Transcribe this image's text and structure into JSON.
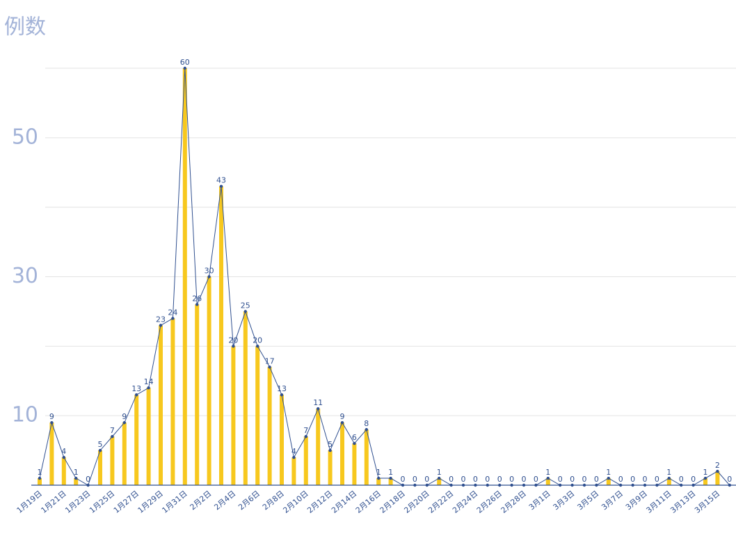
{
  "chart_data": {
    "type": "bar",
    "y_title": "例数",
    "categories": [
      "1月19日",
      null,
      "1月21日",
      null,
      "1月23日",
      null,
      "1月25日",
      null,
      "1月27日",
      null,
      "1月29日",
      null,
      "1月31日",
      null,
      "2月2日",
      null,
      "2月4日",
      null,
      "2月6日",
      null,
      "2月8日",
      null,
      "2月10日",
      null,
      "2月12日",
      null,
      "2月14日",
      null,
      "2月16日",
      null,
      "2月18日",
      null,
      "2月20日",
      null,
      "2月22日",
      null,
      "2月24日",
      null,
      "2月26日",
      null,
      "2月28日",
      null,
      "3月1日",
      null,
      "3月3日",
      null,
      "3月5日",
      null,
      "3月7日",
      null,
      "3月9日",
      null,
      "3月11日",
      null,
      "3月13日",
      null,
      "3月15日",
      null
    ],
    "values": [
      1,
      9,
      4,
      1,
      0,
      5,
      7,
      9,
      13,
      14,
      23,
      24,
      60,
      26,
      30,
      43,
      20,
      25,
      20,
      17,
      13,
      4,
      7,
      11,
      5,
      9,
      6,
      8,
      1,
      1,
      0,
      0,
      0,
      1,
      0,
      0,
      0,
      0,
      0,
      0,
      0,
      0,
      1,
      0,
      0,
      0,
      0,
      1,
      0,
      0,
      0,
      0,
      1,
      0,
      0,
      1,
      2,
      0
    ],
    "color": "#f7c81e",
    "line_color": "#2f4f8f",
    "line_overlay": true,
    "ylim": [
      0,
      60
    ],
    "yticks": [
      10,
      30,
      50
    ],
    "grid_lines": [
      10,
      20,
      30,
      40,
      50,
      60
    ],
    "grid": true
  }
}
